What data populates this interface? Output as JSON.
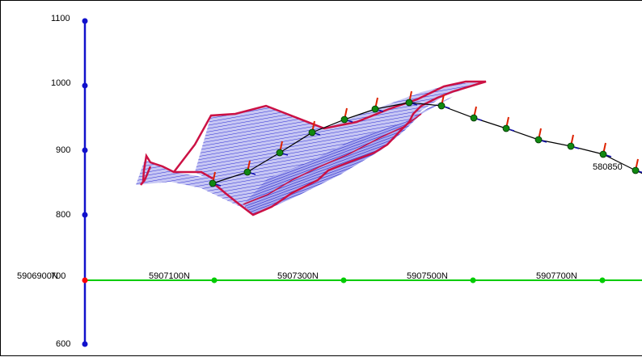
{
  "view": {
    "y_axis": {
      "tick_labels": [
        "1100",
        "1000",
        "900",
        "800",
        "600"
      ],
      "color": "#0000cc"
    },
    "x_axis": {
      "origin_label": "5906900N",
      "overlap_label": "700",
      "tick_labels": [
        "5907100N",
        "5907300N",
        "5907500N",
        "5907700N"
      ],
      "color": "#00cc00",
      "origin_marker_color": "#ff0000"
    },
    "section_label": "580850",
    "colors": {
      "outline": "#cc1144",
      "hatch": "#2222cc",
      "fill": "#b8b8f0",
      "trace": "#000000",
      "station": "#118811",
      "tick_red": "#dd2200"
    }
  }
}
